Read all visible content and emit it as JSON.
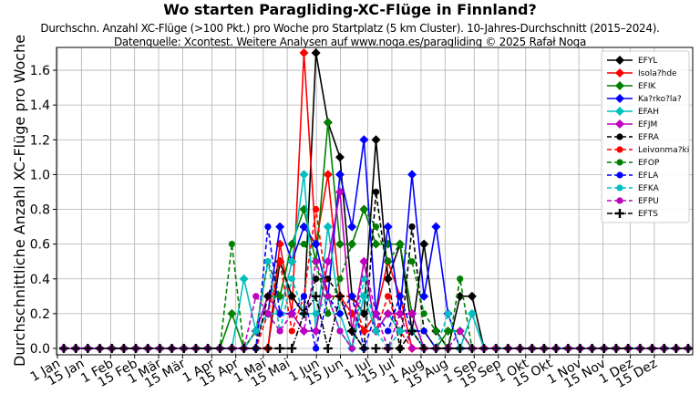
{
  "header": {
    "title": "Wo starten Paragliding-XC-Flüge in Finnland?",
    "subtitle_line1": "Durchschn. Anzahl XC-Flüge (>100 Pkt.) pro Woche pro Startplatz (5 km Cluster). 10-Jahres-Durchschnitt (2015–2024).",
    "subtitle_line2": "Datenquelle: Xcontest. Weitere Analysen auf www.noga.es/paragliding © 2025 Rafał Noga"
  },
  "chart_data": {
    "type": "line",
    "title": "Wo starten Paragliding-XC-Flüge in Finnland?",
    "xlabel": "",
    "ylabel": "Durchschnittliche Anzahl XC-Flüge pro Woche",
    "ylim": [
      0,
      1.72
    ],
    "yticks": [
      "0.0",
      "0.2",
      "0.4",
      "0.6",
      "0.8",
      "1.0",
      "1.2",
      "1.4",
      "1.6"
    ],
    "xticks": [
      "1 Jan",
      "15 Jan",
      "1 Feb",
      "15 Feb",
      "1 Mär",
      "15 Mär",
      "1 Apr",
      "15 Apr",
      "1 Mai",
      "15 Mai",
      "1 Jun",
      "15 Jun",
      "1 Jul",
      "15 Jul",
      "1 Aug",
      "15 Aug",
      "1 Sep",
      "15 Sep",
      "1 Okt",
      "15 Okt",
      "1 Nov",
      "15 Nov",
      "1 Dez",
      "15 Dez"
    ],
    "grid": true,
    "legend_position": "upper right",
    "x_weeks": 53,
    "series": [
      {
        "name": "EFYL",
        "color": "#000000",
        "style": "solid",
        "marker": "diamond",
        "values": [
          0,
          0,
          0,
          0,
          0,
          0,
          0,
          0,
          0,
          0,
          0,
          0,
          0,
          0,
          0,
          0,
          0,
          0,
          0.5,
          0.3,
          0.2,
          1.7,
          1.3,
          1.1,
          0.3,
          0.2,
          1.2,
          0.4,
          0.6,
          0.1,
          0.6,
          0.1,
          0,
          0.3,
          0.3,
          0,
          0,
          0,
          0,
          0,
          0,
          0,
          0,
          0,
          0,
          0,
          0,
          0,
          0,
          0,
          0,
          0,
          0
        ]
      },
      {
        "name": "Isola?hde",
        "color": "#ff0000",
        "style": "solid",
        "marker": "diamond",
        "values": [
          0,
          0,
          0,
          0,
          0,
          0,
          0,
          0,
          0,
          0,
          0,
          0,
          0,
          0,
          0,
          0,
          0,
          0,
          0.6,
          0.2,
          1.7,
          0.6,
          1.0,
          0.3,
          0.2,
          0.1,
          0.2,
          0.5,
          0.3,
          0,
          0,
          0,
          0,
          0,
          0,
          0,
          0,
          0,
          0,
          0,
          0,
          0,
          0,
          0,
          0,
          0,
          0,
          0,
          0,
          0,
          0,
          0,
          0
        ]
      },
      {
        "name": "EFIK",
        "color": "#008000",
        "style": "solid",
        "marker": "diamond",
        "values": [
          0,
          0,
          0,
          0,
          0,
          0,
          0,
          0,
          0,
          0,
          0,
          0,
          0,
          0,
          0.2,
          0,
          0.1,
          0.3,
          0.3,
          0.6,
          0.8,
          0.5,
          1.3,
          0.6,
          0.6,
          0.8,
          0.6,
          0.6,
          0.6,
          0.2,
          0,
          0,
          0.1,
          0.1,
          0,
          0,
          0,
          0,
          0,
          0,
          0,
          0,
          0,
          0,
          0,
          0,
          0,
          0,
          0,
          0,
          0,
          0,
          0
        ]
      },
      {
        "name": "Ka?rko?la?",
        "color": "#0000ff",
        "style": "solid",
        "marker": "diamond",
        "values": [
          0,
          0,
          0,
          0,
          0,
          0,
          0,
          0,
          0,
          0,
          0,
          0,
          0,
          0,
          0,
          0,
          0.1,
          0.2,
          0.7,
          0.5,
          0.7,
          0.6,
          0.3,
          1.0,
          0.7,
          1.2,
          0.2,
          0.7,
          0.2,
          1.0,
          0.3,
          0.7,
          0.2,
          0,
          0,
          0,
          0,
          0,
          0,
          0,
          0,
          0,
          0,
          0,
          0,
          0,
          0,
          0,
          0,
          0,
          0,
          0,
          0
        ]
      },
      {
        "name": "EFAH",
        "color": "#00bfbf",
        "style": "solid",
        "marker": "diamond",
        "values": [
          0,
          0,
          0,
          0,
          0,
          0,
          0,
          0,
          0,
          0,
          0,
          0,
          0,
          0,
          0,
          0.4,
          0.1,
          0.2,
          0.2,
          0.5,
          1.0,
          0.1,
          0.7,
          0.2,
          0,
          0.3,
          0.1,
          0.2,
          0.1,
          0.1,
          0,
          0,
          0,
          0,
          0.2,
          0,
          0,
          0,
          0,
          0,
          0,
          0,
          0,
          0,
          0,
          0,
          0,
          0,
          0,
          0,
          0,
          0,
          0
        ]
      },
      {
        "name": "EFJM",
        "color": "#bf00bf",
        "style": "solid",
        "marker": "diamond",
        "values": [
          0,
          0,
          0,
          0,
          0,
          0,
          0,
          0,
          0,
          0,
          0,
          0,
          0,
          0,
          0,
          0,
          0.1,
          0.3,
          0.2,
          0.2,
          0.1,
          0.1,
          0.5,
          0.9,
          0.1,
          0.5,
          0.1,
          0.2,
          0.2,
          0.2,
          0,
          0,
          0,
          0,
          0,
          0,
          0,
          0,
          0,
          0,
          0,
          0,
          0,
          0,
          0,
          0,
          0,
          0,
          0,
          0,
          0,
          0,
          0
        ]
      },
      {
        "name": "EFRA",
        "color": "#000000",
        "style": "dashed",
        "marker": "circle",
        "values": [
          0,
          0,
          0,
          0,
          0,
          0,
          0,
          0,
          0,
          0,
          0,
          0,
          0,
          0,
          0,
          0,
          0,
          0.3,
          0.5,
          0.3,
          0.2,
          0.4,
          0.4,
          0.3,
          0.1,
          0,
          0.9,
          0.4,
          0,
          0.7,
          0.1,
          0,
          0,
          0,
          0,
          0,
          0,
          0,
          0,
          0,
          0,
          0,
          0,
          0,
          0,
          0,
          0,
          0,
          0,
          0,
          0,
          0,
          0
        ]
      },
      {
        "name": "Leivonma?ki",
        "color": "#ff0000",
        "style": "dashed",
        "marker": "circle",
        "values": [
          0,
          0,
          0,
          0,
          0,
          0,
          0,
          0,
          0,
          0,
          0,
          0,
          0,
          0,
          0,
          0,
          0,
          0.2,
          0.5,
          0.1,
          0.3,
          0.8,
          0.3,
          0.3,
          0.3,
          0.1,
          0.1,
          0.3,
          0.1,
          0,
          0,
          0,
          0,
          0,
          0,
          0,
          0,
          0,
          0,
          0,
          0,
          0,
          0,
          0,
          0,
          0,
          0,
          0,
          0,
          0,
          0,
          0,
          0
        ]
      },
      {
        "name": "EFOP",
        "color": "#008000",
        "style": "dashed",
        "marker": "circle",
        "values": [
          0,
          0,
          0,
          0,
          0,
          0,
          0,
          0,
          0,
          0,
          0,
          0,
          0,
          0,
          0.6,
          0,
          0.1,
          0.5,
          0.3,
          0.6,
          0.6,
          0.5,
          0.2,
          0.4,
          0.6,
          0.8,
          0.7,
          0.5,
          0.6,
          0.5,
          0.2,
          0.1,
          0,
          0.4,
          0,
          0,
          0,
          0,
          0,
          0,
          0,
          0,
          0,
          0,
          0,
          0,
          0,
          0,
          0,
          0,
          0,
          0,
          0
        ]
      },
      {
        "name": "EFLA",
        "color": "#0000ff",
        "style": "dashed",
        "marker": "circle",
        "values": [
          0,
          0,
          0,
          0,
          0,
          0,
          0,
          0,
          0,
          0,
          0,
          0,
          0,
          0,
          0,
          0,
          0,
          0.7,
          0.2,
          0.2,
          0.3,
          0,
          0.3,
          0.2,
          0.3,
          0,
          0.2,
          0.1,
          0.3,
          0.1,
          0.1,
          0,
          0,
          0,
          0,
          0,
          0,
          0,
          0,
          0,
          0,
          0,
          0,
          0,
          0,
          0,
          0,
          0,
          0,
          0,
          0,
          0,
          0
        ]
      },
      {
        "name": "EFKA",
        "color": "#00bfbf",
        "style": "dashed",
        "marker": "circle",
        "values": [
          0,
          0,
          0,
          0,
          0,
          0,
          0,
          0,
          0,
          0,
          0,
          0,
          0,
          0,
          0,
          0,
          0.1,
          0.5,
          0.1,
          0.4,
          0.2,
          0.2,
          0.3,
          0.1,
          0,
          0.4,
          0.1,
          0,
          0.1,
          0.1,
          0,
          0,
          0.2,
          0,
          0.2,
          0,
          0,
          0,
          0,
          0,
          0,
          0,
          0,
          0,
          0,
          0,
          0,
          0,
          0,
          0,
          0,
          0,
          0
        ]
      },
      {
        "name": "EFPU",
        "color": "#bf00bf",
        "style": "dashed",
        "marker": "circle",
        "values": [
          0,
          0,
          0,
          0,
          0,
          0,
          0,
          0,
          0,
          0,
          0,
          0,
          0,
          0,
          0,
          0,
          0.3,
          0.2,
          0.1,
          0.2,
          0.1,
          0.5,
          0.3,
          0.1,
          0,
          0.5,
          0.2,
          0,
          0.2,
          0,
          0,
          0,
          0,
          0.1,
          0,
          0,
          0,
          0,
          0,
          0,
          0,
          0,
          0,
          0,
          0,
          0,
          0,
          0,
          0,
          0,
          0,
          0,
          0
        ]
      },
      {
        "name": "EFTS",
        "color": "#000000",
        "style": "dashdot",
        "marker": "plus",
        "values": [
          0,
          0,
          0,
          0,
          0,
          0,
          0,
          0,
          0,
          0,
          0,
          0,
          0,
          0,
          0,
          0,
          0,
          0,
          0,
          0,
          0.2,
          0.3,
          0,
          0.3,
          0.1,
          0,
          0,
          0,
          0,
          0.1,
          0,
          0,
          0,
          0,
          0,
          0,
          0,
          0,
          0,
          0,
          0,
          0,
          0,
          0,
          0,
          0,
          0,
          0,
          0,
          0,
          0,
          0,
          0
        ]
      }
    ]
  }
}
